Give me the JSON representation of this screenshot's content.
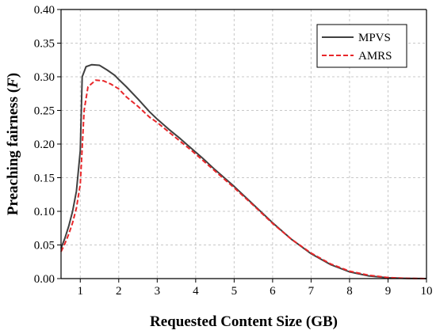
{
  "chart_data": {
    "type": "line",
    "title": "",
    "xlabel": "Requested Content Size (GB)",
    "ylabel_text": "Preaching fairness (",
    "ylabel_symbol": "F",
    "ylabel_close": ")",
    "xlim": [
      0.5,
      10
    ],
    "ylim": [
      0,
      0.4
    ],
    "xticks": [
      1,
      2,
      3,
      4,
      5,
      6,
      7,
      8,
      9,
      10
    ],
    "yticks": [
      0.0,
      0.05,
      0.1,
      0.15,
      0.2,
      0.25,
      0.3,
      0.35,
      0.4
    ],
    "xtick_labels": [
      "1",
      "2",
      "3",
      "4",
      "5",
      "6",
      "7",
      "8",
      "9",
      "10"
    ],
    "ytick_labels": [
      "0.00",
      "0.05",
      "0.10",
      "0.15",
      "0.20",
      "0.25",
      "0.30",
      "0.35",
      "0.40"
    ],
    "grid": true,
    "legend_position": "top-right",
    "series": [
      {
        "name": "MPVS",
        "color": "#404040",
        "style": "solid",
        "points": [
          [
            0.5,
            0.045
          ],
          [
            0.6,
            0.06
          ],
          [
            0.7,
            0.078
          ],
          [
            0.8,
            0.1
          ],
          [
            0.9,
            0.13
          ],
          [
            1.0,
            0.19
          ],
          [
            1.05,
            0.3
          ],
          [
            1.15,
            0.315
          ],
          [
            1.3,
            0.318
          ],
          [
            1.5,
            0.317
          ],
          [
            1.7,
            0.31
          ],
          [
            1.9,
            0.302
          ],
          [
            2.0,
            0.296
          ],
          [
            2.2,
            0.285
          ],
          [
            2.5,
            0.267
          ],
          [
            2.8,
            0.248
          ],
          [
            3.0,
            0.237
          ],
          [
            3.3,
            0.222
          ],
          [
            3.6,
            0.208
          ],
          [
            3.9,
            0.193
          ],
          [
            4.2,
            0.178
          ],
          [
            4.5,
            0.162
          ],
          [
            5.0,
            0.137
          ],
          [
            5.5,
            0.11
          ],
          [
            6.0,
            0.083
          ],
          [
            6.5,
            0.058
          ],
          [
            7.0,
            0.037
          ],
          [
            7.5,
            0.021
          ],
          [
            8.0,
            0.01
          ],
          [
            8.5,
            0.004
          ],
          [
            9.0,
            0.0012
          ],
          [
            9.5,
            0.0003
          ],
          [
            10.0,
            0.0
          ]
        ]
      },
      {
        "name": "AMRS",
        "color": "#e8272a",
        "style": "dashed",
        "points": [
          [
            0.5,
            0.04
          ],
          [
            0.6,
            0.052
          ],
          [
            0.7,
            0.066
          ],
          [
            0.8,
            0.083
          ],
          [
            0.9,
            0.105
          ],
          [
            1.0,
            0.14
          ],
          [
            1.1,
            0.25
          ],
          [
            1.2,
            0.285
          ],
          [
            1.4,
            0.295
          ],
          [
            1.6,
            0.294
          ],
          [
            1.8,
            0.289
          ],
          [
            2.0,
            0.282
          ],
          [
            2.2,
            0.27
          ],
          [
            2.5,
            0.256
          ],
          [
            2.8,
            0.24
          ],
          [
            3.0,
            0.232
          ],
          [
            3.3,
            0.218
          ],
          [
            3.6,
            0.204
          ],
          [
            3.9,
            0.19
          ],
          [
            4.2,
            0.175
          ],
          [
            4.5,
            0.16
          ],
          [
            5.0,
            0.135
          ],
          [
            5.5,
            0.109
          ],
          [
            6.0,
            0.082
          ],
          [
            6.5,
            0.058
          ],
          [
            7.0,
            0.038
          ],
          [
            7.5,
            0.022
          ],
          [
            8.0,
            0.011
          ],
          [
            8.5,
            0.005
          ],
          [
            9.0,
            0.0015
          ],
          [
            9.5,
            0.0004
          ],
          [
            10.0,
            0.0
          ]
        ]
      }
    ]
  }
}
